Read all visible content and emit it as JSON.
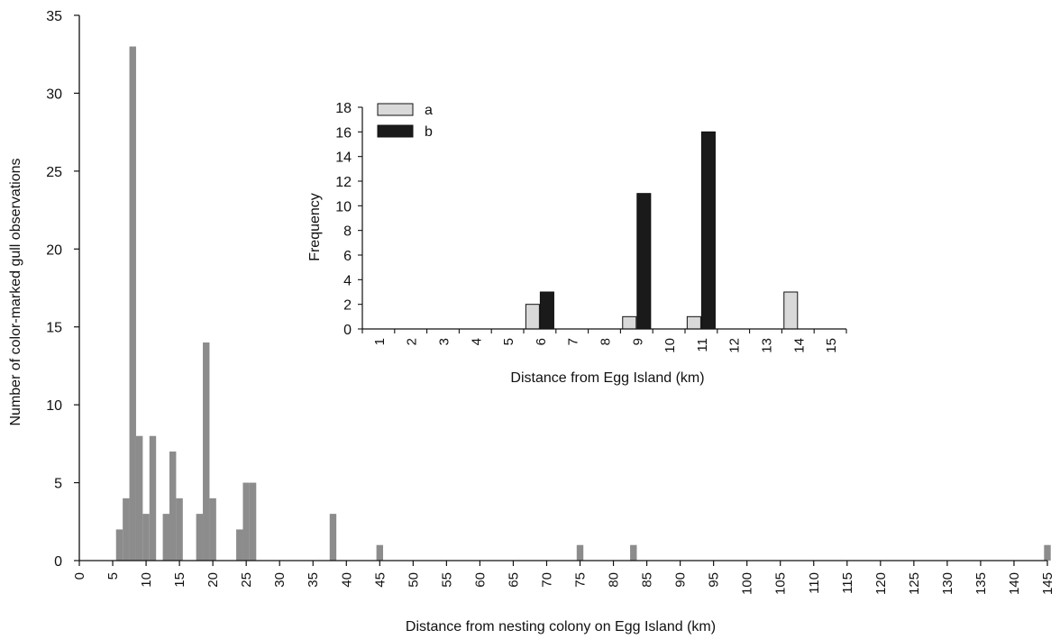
{
  "chart_data": [
    {
      "id": "main",
      "type": "bar",
      "title": "",
      "xlabel": "Distance from nesting colony on Egg Island (km)",
      "ylabel": "Number of color-marked gull observations",
      "xlim": [
        0,
        145
      ],
      "ylim": [
        0,
        35
      ],
      "yticks": [
        0,
        5,
        10,
        15,
        20,
        25,
        30,
        35
      ],
      "xticks": [
        0,
        5,
        10,
        15,
        20,
        25,
        30,
        35,
        40,
        45,
        50,
        55,
        60,
        65,
        70,
        75,
        80,
        85,
        90,
        95,
        100,
        105,
        110,
        115,
        120,
        125,
        130,
        135,
        140,
        145
      ],
      "bin_width_km": 1,
      "color": "#8c8c8c",
      "x": [
        6,
        7,
        8,
        9,
        10,
        11,
        13,
        14,
        15,
        18,
        19,
        20,
        24,
        25,
        26,
        38,
        45,
        75,
        83,
        145
      ],
      "values": [
        2,
        4,
        33,
        8,
        3,
        8,
        3,
        7,
        4,
        3,
        14,
        4,
        2,
        5,
        5,
        3,
        1,
        1,
        1,
        1
      ]
    },
    {
      "id": "inset",
      "type": "bar",
      "title": "",
      "xlabel": "Distance from Egg Island (km)",
      "ylabel": "Frequency",
      "categories": [
        "1",
        "2",
        "3",
        "4",
        "5",
        "6",
        "7",
        "8",
        "9",
        "10",
        "11",
        "12",
        "13",
        "14",
        "15"
      ],
      "ylim": [
        0,
        18
      ],
      "yticks": [
        0,
        2,
        4,
        6,
        8,
        10,
        12,
        14,
        16,
        18
      ],
      "legend": "top-left",
      "series": [
        {
          "name": "a",
          "color": "#d9d9d9",
          "values": [
            0,
            0,
            0,
            0,
            0,
            2,
            0,
            0,
            1,
            0,
            1,
            0,
            0,
            3,
            0
          ]
        },
        {
          "name": "b",
          "color": "#1a1a1a",
          "values": [
            0,
            0,
            0,
            0,
            0,
            3,
            0,
            0,
            11,
            0,
            16,
            0,
            0,
            0,
            0
          ]
        }
      ]
    }
  ]
}
